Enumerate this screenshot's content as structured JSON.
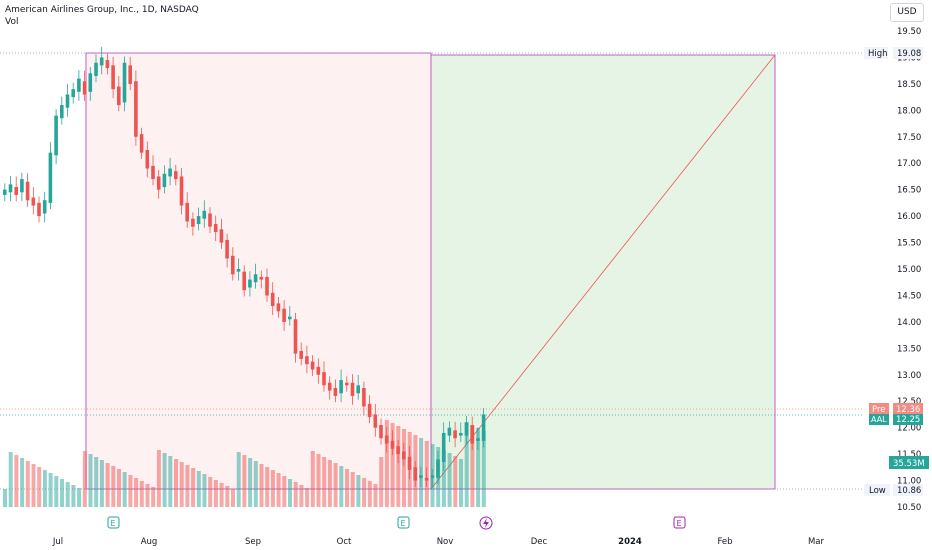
{
  "header": {
    "title": "American Airlines Group, Inc., 1D, NASDAQ",
    "volume_label": "Vol",
    "currency": "USD"
  },
  "price_axis": {
    "ticks": [
      "19.50",
      "19.00",
      "18.50",
      "18.00",
      "17.50",
      "17.00",
      "16.50",
      "16.00",
      "15.50",
      "15.00",
      "14.50",
      "14.00",
      "13.50",
      "13.00",
      "12.50",
      "12.00",
      "11.50",
      "11.00",
      "10.50"
    ]
  },
  "time_axis": {
    "ticks": [
      "Jul",
      "Aug",
      "Sep",
      "Oct",
      "Nov",
      "Dec",
      "2024",
      "Feb",
      "Mar"
    ]
  },
  "markers": {
    "high_label": "High",
    "high_value": "19.08",
    "low_label": "Low",
    "low_value": "10.86",
    "pre_label": "Pre",
    "pre_value": "12.36",
    "symbol_label": "AAL",
    "last_value": "12.25",
    "volume_value": "35.53M",
    "earnings_letter": "E"
  },
  "colors": {
    "up": "#26a69a",
    "down": "#ef5350",
    "loss_zone": "rgba(242,54,69,0.07)",
    "target_zone": "rgba(76,175,80,0.14)",
    "zone_border": "#9c27b0",
    "pre_badge": "#f28b82",
    "last_badge": "#26a69a"
  },
  "chart_data": {
    "type": "candlestick",
    "symbol": "AAL",
    "exchange": "NASDAQ",
    "interval": "1D",
    "ylim": [
      10.5,
      19.5
    ],
    "period_high": 19.08,
    "period_low": 10.86,
    "premarket": 12.36,
    "last": 12.25,
    "last_volume": "35.53M",
    "price_range_tool": {
      "start": "Jul",
      "mid": "Oct",
      "end": "Feb",
      "top": 19.08,
      "bottom": 10.86
    },
    "ohlc_close_series": [
      16.5,
      16.6,
      16.4,
      16.7,
      16.3,
      16.2,
      16.0,
      16.3,
      17.2,
      17.9,
      18.1,
      18.3,
      18.4,
      18.6,
      18.3,
      18.7,
      18.9,
      19.0,
      18.8,
      18.4,
      18.1,
      18.9,
      18.5,
      17.5,
      17.2,
      16.9,
      16.7,
      16.5,
      16.8,
      16.9,
      16.7,
      16.2,
      15.9,
      15.8,
      16.0,
      16.1,
      15.8,
      15.7,
      15.5,
      15.2,
      14.9,
      15.0,
      14.6,
      14.8,
      14.9,
      14.8,
      14.5,
      14.3,
      14.2,
      14.0,
      14.1,
      13.4,
      13.3,
      13.2,
      13.1,
      13.0,
      12.8,
      12.7,
      12.6,
      12.9,
      12.8,
      12.6,
      12.8,
      12.4,
      12.2,
      12.0,
      11.8,
      11.7,
      11.6,
      11.5,
      11.4,
      11.2,
      11.0,
      11.1,
      11.0,
      11.1,
      11.4,
      11.9,
      12.0,
      11.8,
      11.9,
      12.1,
      11.7,
      11.8,
      12.25
    ]
  }
}
